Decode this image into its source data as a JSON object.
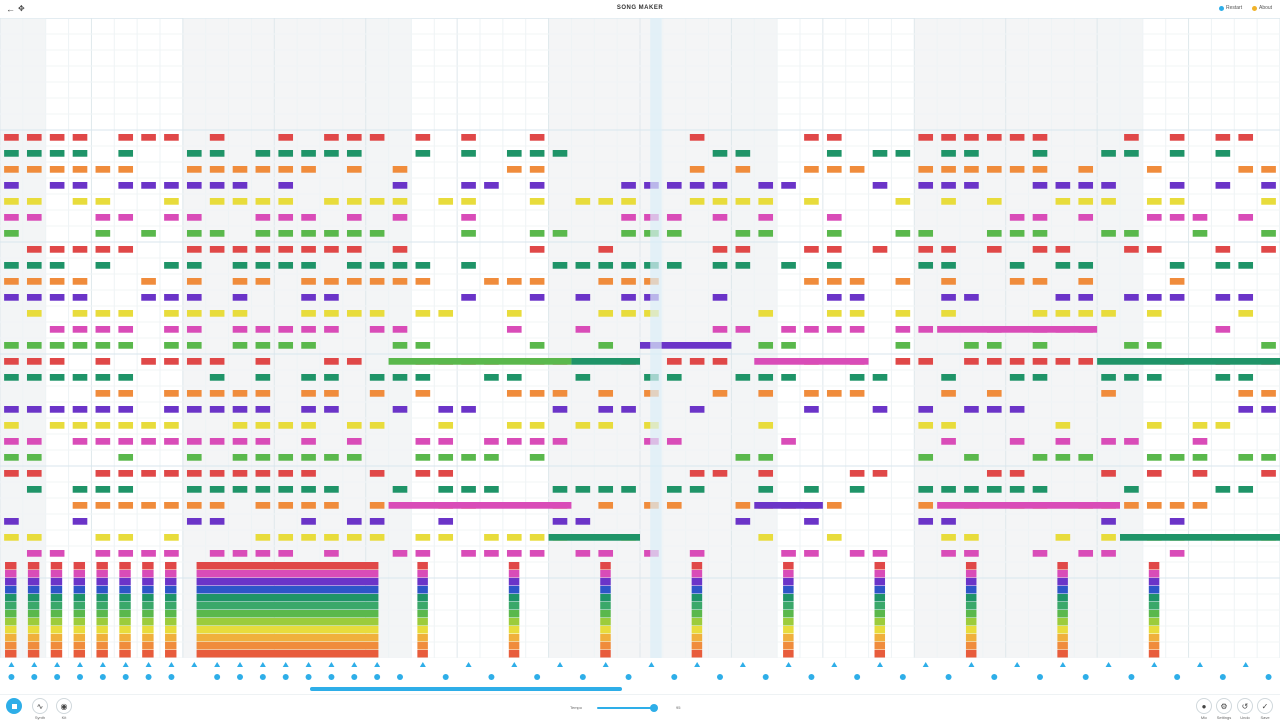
{
  "header": {
    "title": "SONG MAKER",
    "back_icon": "back-arrow-icon",
    "move_icon": "move-icon",
    "links": [
      {
        "label": "Restart",
        "color": "#2eaee8"
      },
      {
        "label": "About",
        "color": "#f0b32a"
      }
    ]
  },
  "grid": {
    "playhead_fraction": 0.508,
    "note_colors": [
      "#e04848",
      "#d94cb8",
      "#6b34c8",
      "#1f9468",
      "#5ab84c",
      "#e8dc3c",
      "#f08c3c"
    ]
  },
  "transport": {
    "left_buttons": [
      {
        "label": "",
        "icon": "stop-icon"
      },
      {
        "label": "Synth",
        "icon": "waveform-icon"
      },
      {
        "label": "Kit",
        "icon": "drum-icon"
      }
    ],
    "tempo_label": "Tempo",
    "tempo_value": "95",
    "tempo_fraction": 0.95,
    "right_buttons": [
      {
        "label": "Mic",
        "icon": "mic-icon"
      },
      {
        "label": "Settings",
        "icon": "gear-icon"
      },
      {
        "label": "Undo",
        "icon": "undo-icon"
      },
      {
        "label": "Save",
        "icon": "check-icon"
      }
    ]
  },
  "scroll": {
    "position_fraction": 0.242,
    "thumb_fraction": 0.244
  }
}
